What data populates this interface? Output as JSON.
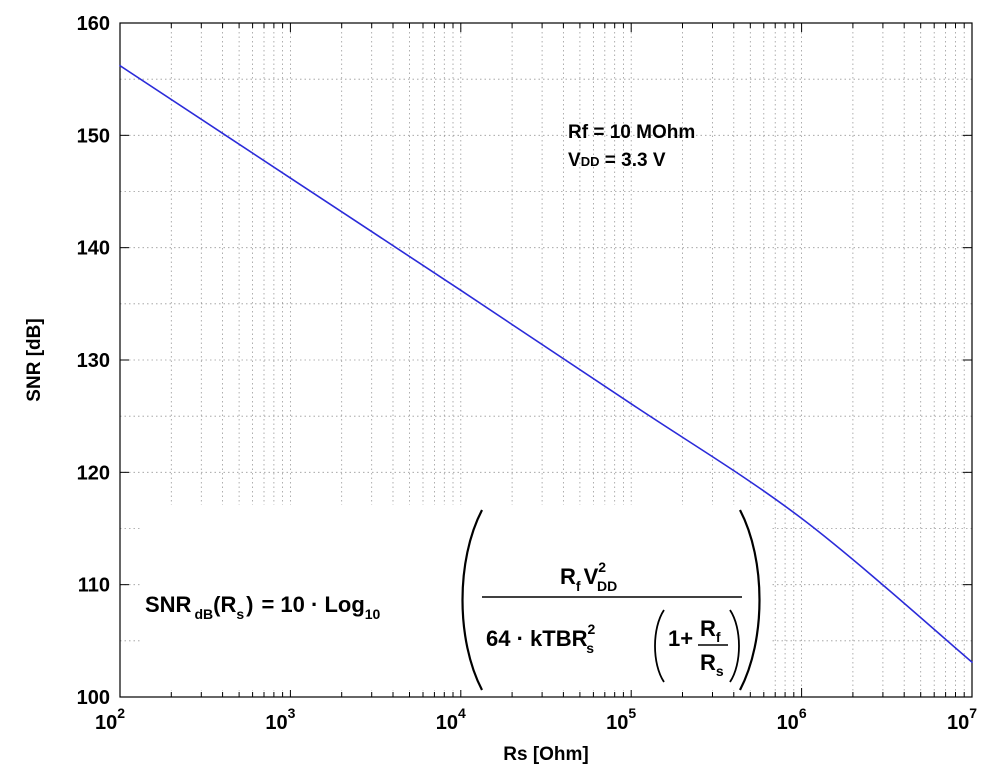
{
  "chart_data": {
    "type": "line",
    "xscale": "log",
    "xlabel": "Rs [Ohm]",
    "ylabel": "SNR [dB]",
    "xlim": [
      100,
      10000000
    ],
    "ylim": [
      100,
      160
    ],
    "grid": true,
    "x_ticks": [
      {
        "base": "10",
        "exp": "2"
      },
      {
        "base": "10",
        "exp": "3"
      },
      {
        "base": "10",
        "exp": "4"
      },
      {
        "base": "10",
        "exp": "5"
      },
      {
        "base": "10",
        "exp": "6"
      },
      {
        "base": "10",
        "exp": "7"
      }
    ],
    "y_ticks": [
      "100",
      "110",
      "120",
      "130",
      "140",
      "150",
      "160"
    ],
    "series": [
      {
        "name": "SNR",
        "color": "#2b2bd9",
        "x": [
          100,
          1000,
          10000,
          100000,
          1000000,
          10000000
        ],
        "y": [
          156.2,
          146.2,
          136.2,
          126.1,
          115.9,
          103.1
        ]
      }
    ],
    "annotations": {
      "rf_line": {
        "main": "Rf",
        "sub": "",
        "rest": " = 10 MOhm"
      },
      "vdd_line": {
        "main": "V",
        "sub": "DD",
        "rest": " = 3.3 V"
      },
      "equation": {
        "lhs_name": "SNR",
        "lhs_sub": "dB",
        "lhs_arg": "(R",
        "lhs_arg_sub": "s",
        "lhs_close": ")",
        "equals": "= 10 · Log",
        "log_sub": "10",
        "num_r": "R",
        "num_r_sub": "f",
        "num_v": "V",
        "num_v_sup": "2",
        "num_v_sub": "DD",
        "den_prefix": "64 · kTBR",
        "den_sup": "2",
        "den_sub": "s",
        "den_one": "1+",
        "frac_num": "R",
        "frac_num_sub": "f",
        "frac_den": "R",
        "frac_den_sub": "s"
      }
    }
  }
}
